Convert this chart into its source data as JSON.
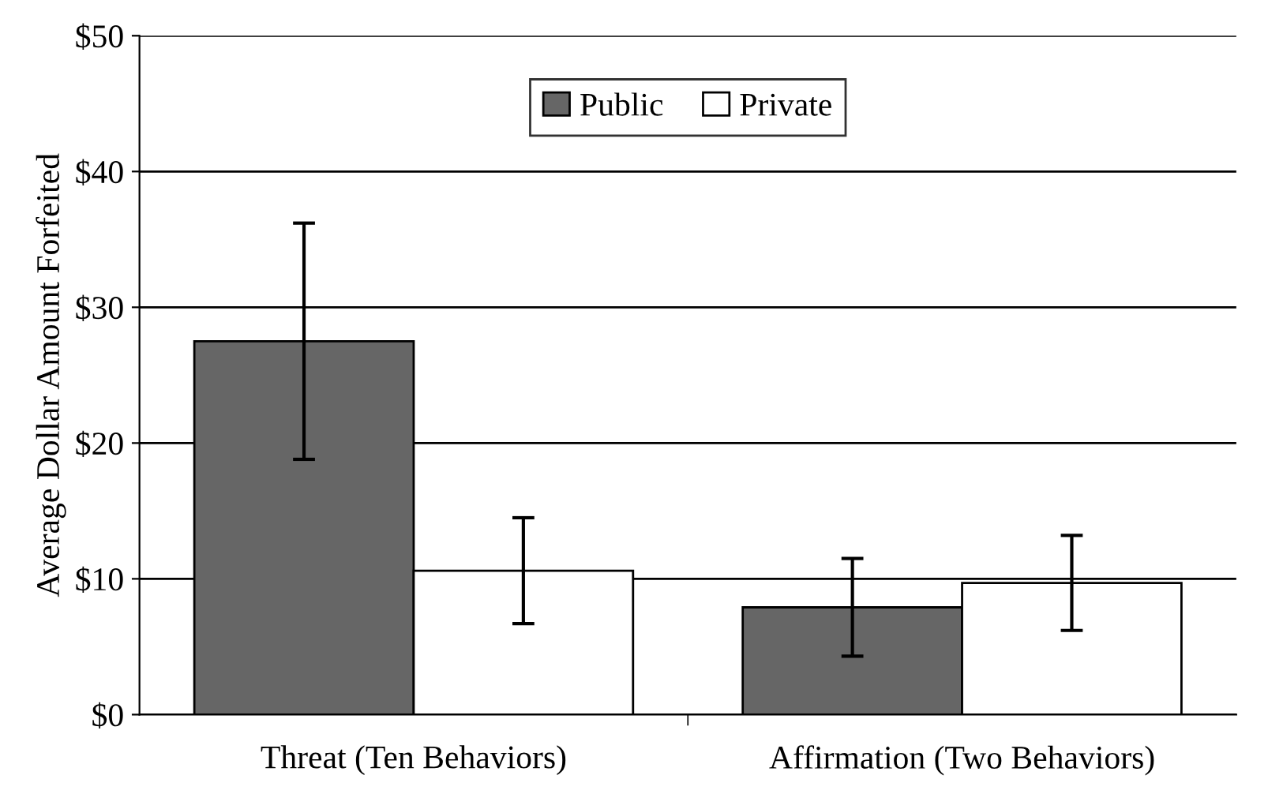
{
  "chart_data": {
    "type": "bar",
    "ylabel": "Average Dollar Amount Forfeited",
    "categories": [
      "Threat (Ten Behaviors)",
      "Affirmation (Two Behaviors)"
    ],
    "series": [
      {
        "name": "Public",
        "color": "#666666",
        "values": [
          27.5,
          7.9
        ],
        "errors": [
          8.7,
          3.6
        ]
      },
      {
        "name": "Private",
        "color": "#ffffff",
        "values": [
          10.6,
          9.7
        ],
        "errors": [
          3.9,
          3.5
        ]
      }
    ],
    "ylim": [
      0,
      50
    ],
    "yticks": [
      {
        "value": 0,
        "label": "$0"
      },
      {
        "value": 10,
        "label": "$10"
      },
      {
        "value": 20,
        "label": "$20"
      },
      {
        "value": 30,
        "label": "$30"
      },
      {
        "value": 40,
        "label": "$40"
      },
      {
        "value": 50,
        "label": "$50"
      }
    ],
    "grid": "y",
    "legend": "top"
  }
}
